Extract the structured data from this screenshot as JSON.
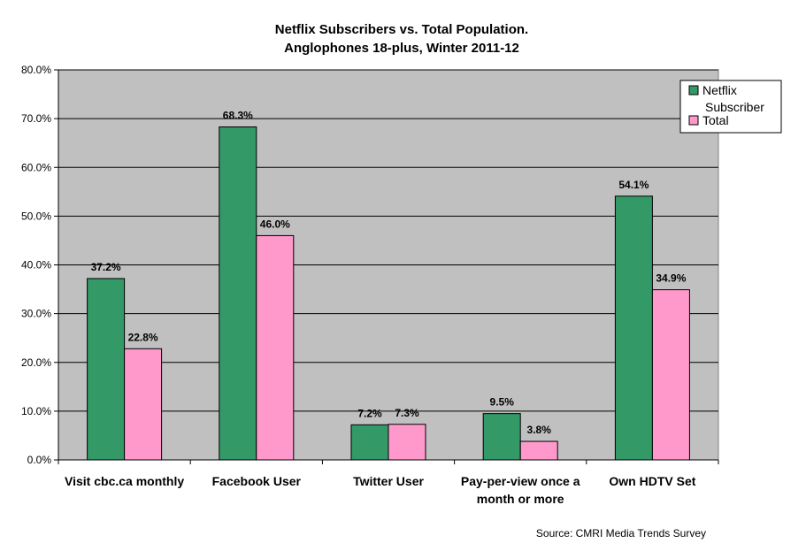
{
  "chart_data": {
    "type": "bar",
    "title": [
      "Netflix Subscribers vs. Total Population.",
      "Anglophones 18-plus, Winter 2011-12"
    ],
    "categories": [
      [
        "Visit cbc.ca monthly"
      ],
      [
        "Facebook User"
      ],
      [
        "Twitter User"
      ],
      [
        "Pay-per-view once a",
        "month or more"
      ],
      [
        "Own HDTV Set"
      ]
    ],
    "series": [
      {
        "name": [
          "Netflix",
          "Subscriber"
        ],
        "values": [
          37.2,
          68.3,
          7.2,
          9.5,
          54.1
        ],
        "labels": [
          "37.2%",
          "68.3%",
          "7.2%",
          "9.5%",
          "54.1%"
        ],
        "color": "#339966"
      },
      {
        "name": [
          "Total"
        ],
        "values": [
          22.8,
          46.0,
          7.3,
          3.8,
          34.9
        ],
        "labels": [
          "22.8%",
          "46.0%",
          "7.3%",
          "3.8%",
          "34.9%"
        ],
        "color": "#ff99cc"
      }
    ],
    "yticks": [
      "0.0%",
      "10.0%",
      "20.0%",
      "30.0%",
      "40.0%",
      "50.0%",
      "60.0%",
      "70.0%",
      "80.0%"
    ],
    "ylim": [
      0,
      80
    ],
    "grid": true,
    "plot_background": "#c0c0c0",
    "legend_position": "top-right",
    "source": "Source: CMRI Media Trends Survey"
  }
}
